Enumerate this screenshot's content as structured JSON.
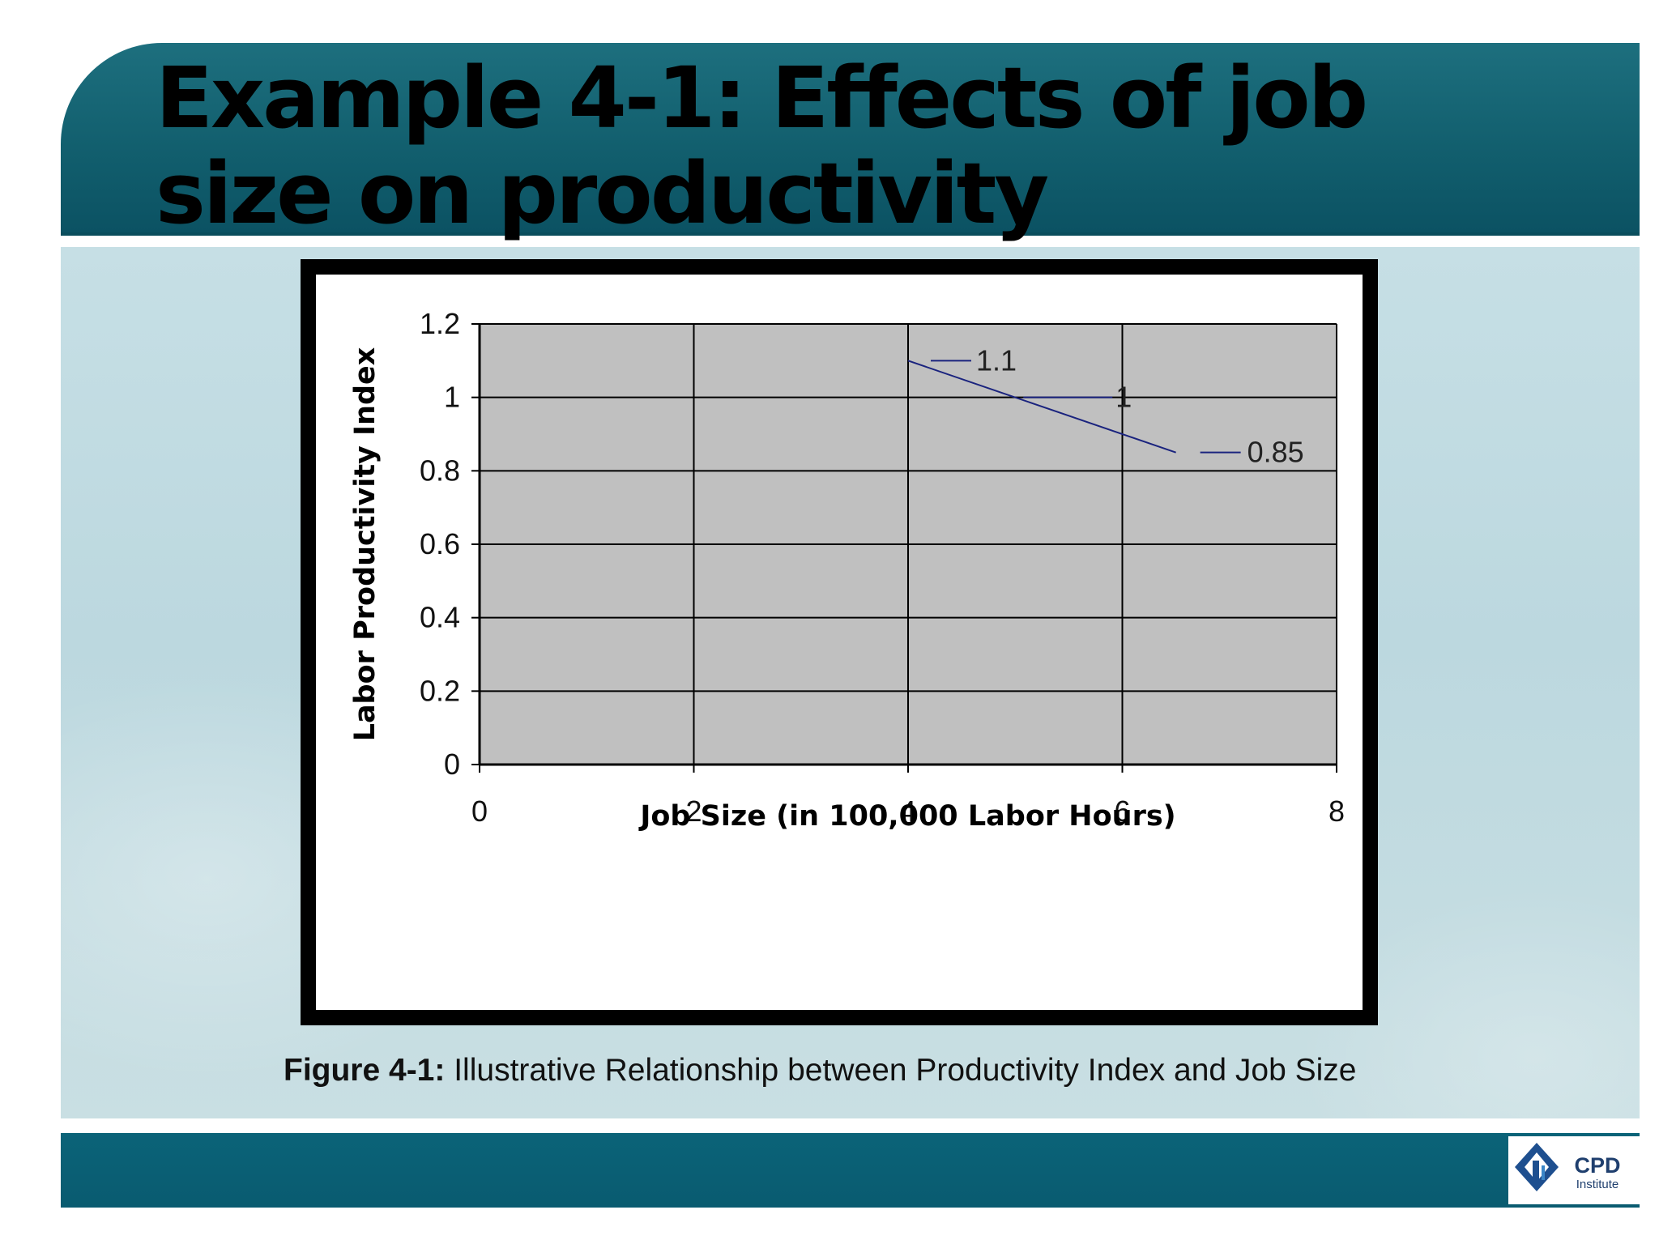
{
  "slide": {
    "title": "Example 4-1: Effects of job\nsize on productivity",
    "caption_bold": "Figure 4-1:",
    "caption_rest": " Illustrative Relationship between Productivity Index and Job Size",
    "logo_text": "CPD",
    "logo_subtext": "Institute"
  },
  "colors": {
    "header_teal": "#125f6e",
    "footer_teal": "#095b70",
    "plot_area": "#c0c0c0",
    "series_line": "#1a237e"
  },
  "chart_data": {
    "type": "line",
    "xlabel": "Job Size (in 100,000 Labor Hours)",
    "ylabel": "Labor Productivity Index",
    "xlim": [
      0,
      8
    ],
    "ylim": [
      0,
      1.2
    ],
    "x_ticks": [
      0,
      2,
      4,
      6,
      8
    ],
    "y_ticks": [
      0,
      0.2,
      0.4,
      0.6,
      0.8,
      1,
      1.2
    ],
    "x_tick_labels": [
      "0",
      "2",
      "4",
      "6",
      "8"
    ],
    "y_tick_labels": [
      "0",
      "0.2",
      "0.4",
      "0.6",
      "0.8",
      "1",
      "1.2"
    ],
    "grid": true,
    "series": [
      {
        "x": [
          4,
          5,
          6.5
        ],
        "y": [
          1.1,
          1,
          0.85
        ]
      }
    ],
    "data_labels": [
      "1.1",
      "1",
      "0.85"
    ]
  }
}
